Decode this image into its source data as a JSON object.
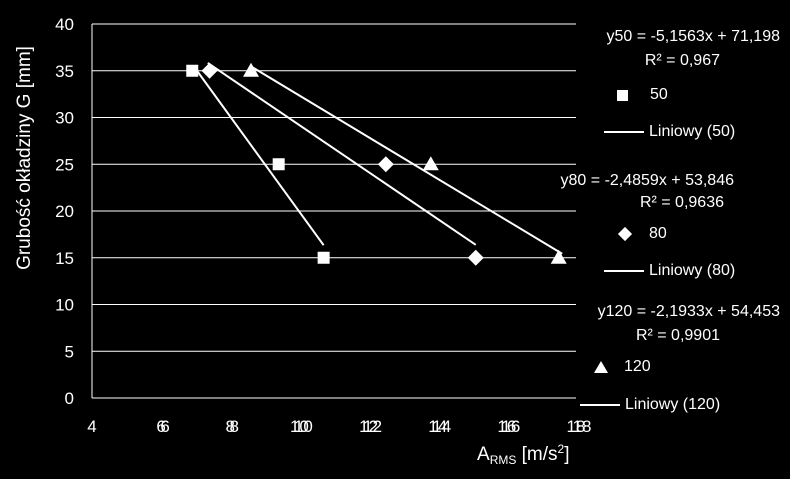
{
  "chart_data": {
    "type": "scatter",
    "title": "",
    "xlabel_main": "A",
    "xlabel_sub": "RMS",
    "xlabel_unit": "[m/s",
    "xlabel_sup": "2",
    "xlabel_close": "]",
    "ylabel": "Grubość okładziny G [mm]",
    "xlim": [
      4,
      18
    ],
    "ylim": [
      0,
      40
    ],
    "x_ticks": [
      "4",
      "6",
      "8",
      "10",
      "12",
      "14",
      "16",
      "18"
    ],
    "y_ticks": [
      "0",
      "5",
      "10",
      "15",
      "20",
      "25",
      "30",
      "35",
      "40"
    ],
    "y_grid": true,
    "legend_position": "right",
    "series": [
      {
        "name": "50",
        "marker": "square",
        "x": [
          6.9,
          9.4,
          10.7
        ],
        "y": [
          35,
          25,
          15
        ],
        "trend_label": "Liniowy (50)",
        "trend_x": [
          6.95,
          10.7
        ],
        "equation": "y50 = -5,1563x + 71,198",
        "r2": "R² = 0,967",
        "doubled_x_tick": "6"
      },
      {
        "name": "80",
        "marker": "diamond",
        "x": [
          7.4,
          12.5,
          15.1
        ],
        "y": [
          35,
          25,
          15
        ],
        "trend_label": "Liniowy (80)",
        "trend_x": [
          7.35,
          15.1
        ],
        "equation": "y80 = -2,4859x + 53,846",
        "r2": "R² = 0,9636",
        "doubled_x_tick": "8"
      },
      {
        "name": "120",
        "marker": "triangle",
        "x": [
          8.6,
          13.8,
          17.5
        ],
        "y": [
          35,
          25,
          15
        ],
        "trend_label": "Liniowy (120)",
        "trend_x": [
          8.6,
          17.6
        ],
        "equation": "y120 = -2,1933x + 54,453",
        "r2": "R² = 0,9901",
        "doubled_x_tick": "18"
      }
    ]
  }
}
